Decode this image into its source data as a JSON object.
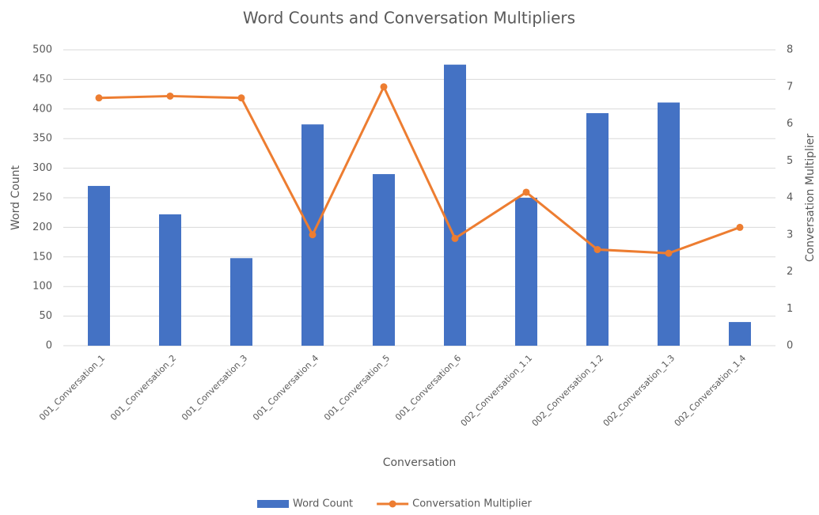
{
  "chart_data": {
    "type": "bar_line",
    "title": "Word Counts and Conversation Multipliers",
    "x_label": "Conversation",
    "y_label": "Word Count",
    "y2_label": "Conversation Multiplier",
    "categories": [
      "001_Conversation_1",
      "001_Conversation_2",
      "001_Conversation_3",
      "001_Conversation_4",
      "001_Conversation_5",
      "001_Conversation_6",
      "002_Conversation_1.1",
      "002_Conversation_1.2",
      "002_Conversation_1.3",
      "002_Conversation_1.4"
    ],
    "series": [
      {
        "name": "Word Count",
        "type": "bar",
        "color": "#4472c4",
        "values": [
          270,
          222,
          148,
          374,
          290,
          475,
          250,
          393,
          411,
          40
        ]
      },
      {
        "name": "Conversation Multiplier",
        "type": "line",
        "axis": "y2",
        "color": "#ed7d31",
        "values": [
          6.7,
          6.75,
          6.7,
          3.0,
          7.0,
          2.9,
          4.15,
          2.6,
          2.5,
          3.2
        ]
      }
    ],
    "ylim": [
      0,
      500
    ],
    "yticks": [
      0,
      50,
      100,
      150,
      200,
      250,
      300,
      350,
      400,
      450,
      500
    ],
    "y2lim": [
      0,
      8
    ],
    "y2ticks": [
      0,
      1,
      2,
      3,
      4,
      5,
      6,
      7,
      8
    ],
    "grid": true,
    "legend": "bottom"
  }
}
